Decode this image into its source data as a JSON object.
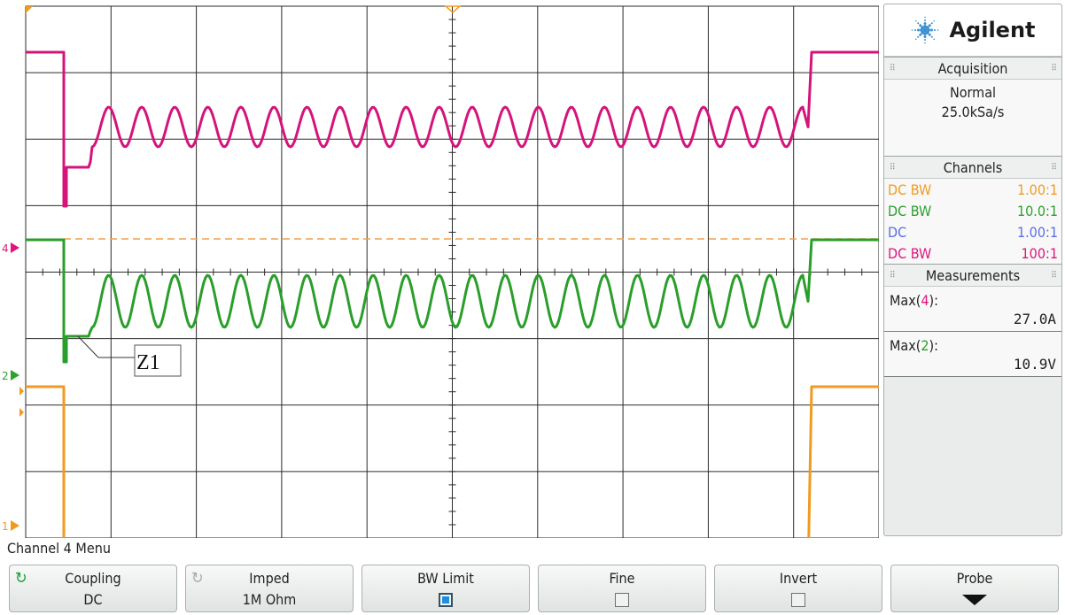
{
  "brand": {
    "logo_text": "Agilent",
    "logo_color": "#3a8fd0"
  },
  "acquisition": {
    "title": "Acquisition",
    "mode": "Normal",
    "rate": "25.0kSa/s"
  },
  "channels": {
    "title": "Channels",
    "rows": [
      {
        "coupling": "DC BW",
        "probe": "1.00:1",
        "color": "#f39a1e"
      },
      {
        "coupling": "DC BW",
        "probe": "10.0:1",
        "color": "#2da02d"
      },
      {
        "coupling": "DC",
        "probe": "1.00:1",
        "color": "#5a6ee8"
      },
      {
        "coupling": "DC BW",
        "probe": "100:1",
        "color": "#e0147c"
      }
    ]
  },
  "measurements": {
    "title": "Measurements",
    "items": [
      {
        "label_pre": "Max(",
        "channel": "4",
        "label_post": "):",
        "value": "27.0A",
        "channel_color": "#e0147c"
      },
      {
        "label_pre": "Max(",
        "channel": "2",
        "label_post": "):",
        "value": "10.9V",
        "channel_color": "#2da02d"
      }
    ]
  },
  "display": {
    "annotation": "Z1",
    "markers": [
      {
        "label": "4",
        "color": "#e0147c"
      },
      {
        "label": "2",
        "color": "#2da02d"
      },
      {
        "label": "1",
        "color": "#f39a1e"
      }
    ],
    "trace_colors": {
      "ch4": "#d4147a",
      "ch2": "#2a9e2a",
      "ch1": "#f09a20"
    }
  },
  "softkeys": {
    "menu_title": "Channel 4 Menu",
    "coupling": {
      "label": "Coupling",
      "value": "DC",
      "icon": "rotate-knob-icon"
    },
    "imped": {
      "label": "Imped",
      "value": "1M Ohm",
      "icon": "rotate-knob-icon"
    },
    "bw_limit": {
      "label": "BW Limit",
      "checked": true
    },
    "fine": {
      "label": "Fine",
      "checked": false
    },
    "invert": {
      "label": "Invert",
      "checked": false
    },
    "probe": {
      "label": "Probe",
      "icon": "arrow-down-icon"
    }
  }
}
